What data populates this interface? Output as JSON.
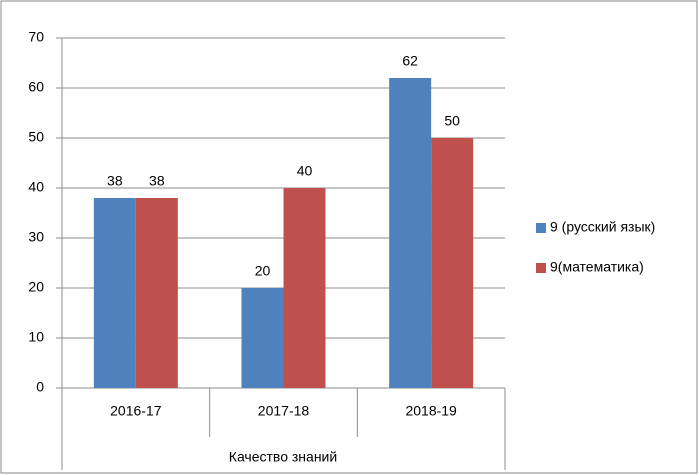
{
  "chart_data": {
    "type": "bar",
    "categories": [
      "2016-17",
      "2017-18",
      "2018-19"
    ],
    "xlabel": "Качество знаний",
    "series": [
      {
        "name": "9 (русский язык)",
        "color": "#4f81bd",
        "values": [
          38,
          20,
          62
        ]
      },
      {
        "name": "9(математика)",
        "color": "#c0504d",
        "values": [
          38,
          40,
          50
        ]
      }
    ],
    "ylim": [
      0,
      70
    ],
    "yticks": [
      0,
      10,
      20,
      30,
      40,
      50,
      60,
      70
    ],
    "grid": true,
    "legend": "right"
  }
}
